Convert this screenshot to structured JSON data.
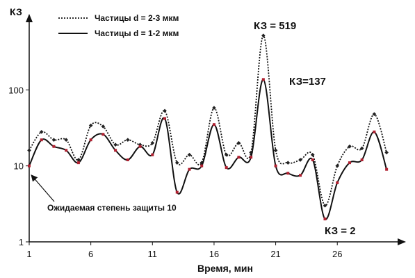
{
  "chart_data": {
    "type": "line",
    "ylabel": "КЗ",
    "xlabel": "Время, мин",
    "yscale": "log",
    "ylim": [
      1,
      1000
    ],
    "xlim": [
      1,
      30
    ],
    "x_ticks": [
      1,
      6,
      11,
      16,
      21,
      26
    ],
    "y_ticks": [
      {
        "value": 1,
        "label": "1"
      },
      {
        "value": 10,
        "label": "10"
      },
      {
        "value": 100,
        "label": "100"
      }
    ],
    "grid": false,
    "legend_position": "top-left",
    "x": [
      1,
      2,
      3,
      4,
      5,
      6,
      7,
      8,
      9,
      10,
      11,
      12,
      13,
      14,
      15,
      16,
      17,
      18,
      19,
      20,
      21,
      22,
      23,
      24,
      25,
      26,
      27,
      28,
      29,
      30
    ],
    "series": [
      {
        "name": "Частицы d = 2-3 мкм",
        "style": "dotted",
        "color": "#111111",
        "values": [
          16,
          28,
          22,
          22,
          12,
          34,
          33,
          19,
          22,
          19,
          20,
          53,
          11,
          14,
          11,
          58,
          14,
          20,
          15,
          519,
          16,
          11,
          12,
          14,
          3,
          10,
          18,
          17,
          48,
          15
        ]
      },
      {
        "name": "Частицы d = 1-2 мкм",
        "style": "solid",
        "color": "#111111",
        "values": [
          10,
          22,
          18,
          16,
          11,
          22,
          26,
          16,
          12,
          18,
          14,
          42,
          4.5,
          9,
          10,
          35,
          9.5,
          13,
          13,
          137,
          10,
          8,
          7.5,
          12,
          2,
          6,
          11,
          12,
          28,
          9
        ]
      }
    ],
    "annotations": {
      "peak_519": "КЗ = 519",
      "peak_137": "КЗ=137",
      "min_2": "КЗ = 2",
      "expected": "Ожидаемая степень защиты 10"
    }
  }
}
